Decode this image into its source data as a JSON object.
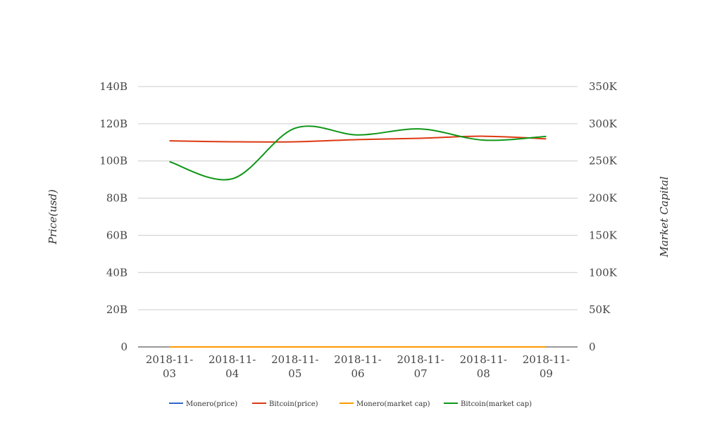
{
  "chart_data": {
    "type": "line",
    "categories": [
      "2018-11-03",
      "2018-11-04",
      "2018-11-05",
      "2018-11-06",
      "2018-11-07",
      "2018-11-08",
      "2018-11-09"
    ],
    "y_left": {
      "label": "Price(usd)",
      "ylim": [
        0,
        140000000000
      ],
      "ticks": [
        0,
        20000000000,
        40000000000,
        60000000000,
        80000000000,
        100000000000,
        120000000000,
        140000000000
      ],
      "tick_labels": [
        "0",
        "20B",
        "40B",
        "60B",
        "80B",
        "100B",
        "120B",
        "140B"
      ]
    },
    "y_right": {
      "label": "Market Capital",
      "ylim": [
        0,
        350000
      ],
      "ticks": [
        0,
        50000,
        100000,
        150000,
        200000,
        250000,
        300000,
        350000
      ],
      "tick_labels": [
        "0",
        "50K",
        "100K",
        "150K",
        "200K",
        "250K",
        "300K",
        "350K"
      ]
    },
    "series": [
      {
        "name": "Monero(price)",
        "axis": "left",
        "color": "#3366cc",
        "values": [
          0,
          0,
          0,
          0,
          0,
          0,
          0
        ]
      },
      {
        "name": "Bitcoin(price)",
        "axis": "left",
        "color": "#dc3912",
        "values": [
          110800000000,
          110300000000,
          110300000000,
          111500000000,
          112200000000,
          113300000000,
          111900000000
        ]
      },
      {
        "name": "Monero(market cap)",
        "axis": "right",
        "color": "#ff9900",
        "values": [
          0,
          0,
          0,
          0,
          0,
          0,
          0
        ]
      },
      {
        "name": "Bitcoin(market cap)",
        "axis": "right",
        "color": "#109618",
        "values": [
          249000,
          226000,
          294000,
          285000,
          293000,
          278000,
          283000
        ]
      }
    ],
    "grid": true,
    "legend_position": "bottom"
  }
}
